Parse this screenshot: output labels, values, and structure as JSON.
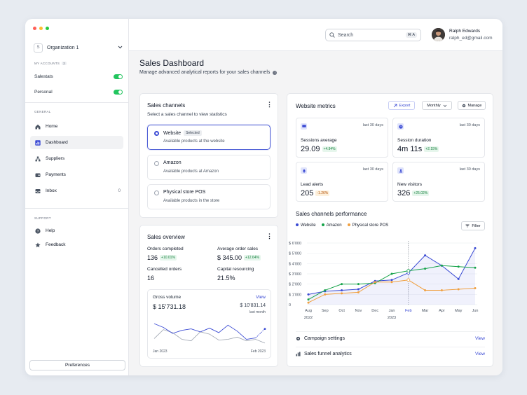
{
  "colors": {
    "accent": "#3b4bd4",
    "green": "#16a34a",
    "orange": "#f0a040",
    "toggle": "#22c55e"
  },
  "window_dots": [
    "#ff5f57",
    "#febc2e",
    "#28c840"
  ],
  "sidebar": {
    "org_initial": "S",
    "org_name": "Organization 1",
    "my_accounts_label": "MY ACCOUNTS",
    "my_accounts_count": "2",
    "accounts": [
      {
        "label": "Salestats",
        "enabled": true
      },
      {
        "label": "Personal",
        "enabled": true
      }
    ],
    "general_label": "GENERAL",
    "nav": [
      {
        "label": "Home",
        "icon": "home-icon"
      },
      {
        "label": "Dashboard",
        "icon": "chart-icon",
        "active": true
      },
      {
        "label": "Suppliers",
        "icon": "suppliers-icon"
      },
      {
        "label": "Payments",
        "icon": "wallet-icon"
      },
      {
        "label": "Inbox",
        "icon": "inbox-icon",
        "count": "0"
      }
    ],
    "support_label": "SUPPORT",
    "support": [
      {
        "label": "Help",
        "icon": "help-icon"
      },
      {
        "label": "Feedback",
        "icon": "star-icon"
      }
    ],
    "preferences_label": "Preferences"
  },
  "topbar": {
    "search_placeholder": "Search",
    "search_shortcut": "⌘ A",
    "user_name": "Ralph Edwards",
    "user_email": "ralph_ed@gmail.com"
  },
  "page": {
    "title": "Sales Dashboard",
    "subtitle": "Manage advanced analytical reports for your sales channels"
  },
  "sales_channels": {
    "title": "Sales channels",
    "subtitle": "Select a sales channel to view statistics",
    "options": [
      {
        "name": "Website",
        "desc": "Available products at the website",
        "selected": true,
        "badge": "Selected"
      },
      {
        "name": "Amazon",
        "desc": "Available products at Amazon",
        "selected": false
      },
      {
        "name": "Physical store POS",
        "desc": "Available products in the store",
        "selected": false
      }
    ]
  },
  "sales_overview": {
    "title": "Sales overview",
    "orders_completed_label": "Orders completed",
    "orders_completed_value": "136",
    "orders_completed_delta": "+10.01%",
    "avg_order_label": "Average order sales",
    "avg_order_value": "$ 345.00",
    "avg_order_delta": "+12.64%",
    "cancelled_label": "Cancelled orders",
    "cancelled_value": "16",
    "capital_label": "Capital resourcing",
    "capital_value": "21.5%",
    "gross_label": "Gross volume",
    "gross_link": "View",
    "gross_value": "$ 15’731.18",
    "gross_prev": "$ 10’831.14",
    "gross_prev_label": "last month",
    "gross_start": "Jan 2023",
    "gross_end": "Feb 2023",
    "gross_series_current": [
      3.5,
      3.0,
      2.2,
      2.6,
      2.8,
      2.4,
      2.9,
      2.3,
      3.3,
      2.5,
      1.4,
      1.6,
      2.8
    ],
    "gross_series_previous": [
      1.5,
      2.7,
      2.3,
      1.4,
      1.2,
      2.4,
      2.1,
      1.3,
      1.4,
      1.7,
      1.2,
      1.4,
      0.9
    ]
  },
  "website_metrics": {
    "title": "Website metrics",
    "export_label": "Export",
    "period_label": "Monthly",
    "manage_label": "Manage",
    "tiles": [
      {
        "label": "Sessions average",
        "value": "29.09",
        "delta": "+4.94%",
        "tone": "green",
        "period": "last 30 days",
        "icon": "monitor-icon"
      },
      {
        "label": "Session duration",
        "value": "4m 11s",
        "delta": "+2.15%",
        "tone": "green",
        "period": "last 30 days",
        "icon": "clock-icon"
      },
      {
        "label": "Lead alerts",
        "value": "205",
        "delta": "-1.26%",
        "tone": "orange",
        "period": "last 30 days",
        "icon": "bell-icon"
      },
      {
        "label": "New visitors",
        "value": "326",
        "delta": "+25.02%",
        "tone": "green",
        "period": "last 30 days",
        "icon": "user-icon"
      }
    ]
  },
  "performance": {
    "title": "Sales channels performance",
    "filter_label": "Filter",
    "campaign_label": "Campaign settings",
    "campaign_link": "View",
    "funnel_label": "Sales funnel analytics",
    "funnel_link": "View"
  },
  "chart_data": {
    "type": "line",
    "categories": [
      "Aug",
      "Sep",
      "Oct",
      "Nov",
      "Dec",
      "Jan",
      "Feb",
      "Mar",
      "Apr",
      "May",
      "Jun"
    ],
    "year_labels": [
      {
        "at": "Aug",
        "label": "2022"
      },
      {
        "at": "Jan",
        "label": "2023"
      }
    ],
    "highlight_category": "Feb",
    "y_ticks": [
      "0",
      "$ 1’000",
      "$ 2’000",
      "$ 3’000",
      "$ 4’000",
      "$ 5’000",
      "$ 6’000"
    ],
    "ylim": [
      0,
      6000
    ],
    "legend": "top-left",
    "grid": true,
    "series": [
      {
        "name": "Website",
        "color": "#3b4bd4",
        "values": [
          1000,
          1300,
          1400,
          1500,
          2300,
          2400,
          3100,
          4800,
          3800,
          2500,
          5500
        ]
      },
      {
        "name": "Amazon",
        "color": "#16a34a",
        "values": [
          500,
          1400,
          2000,
          2000,
          2100,
          3000,
          3300,
          3500,
          3800,
          3700,
          3600
        ]
      },
      {
        "name": "Physical store POS",
        "color": "#f0a040",
        "values": [
          200,
          1000,
          1100,
          1200,
          2200,
          2200,
          2400,
          1400,
          1400,
          1500,
          1600
        ]
      }
    ]
  }
}
